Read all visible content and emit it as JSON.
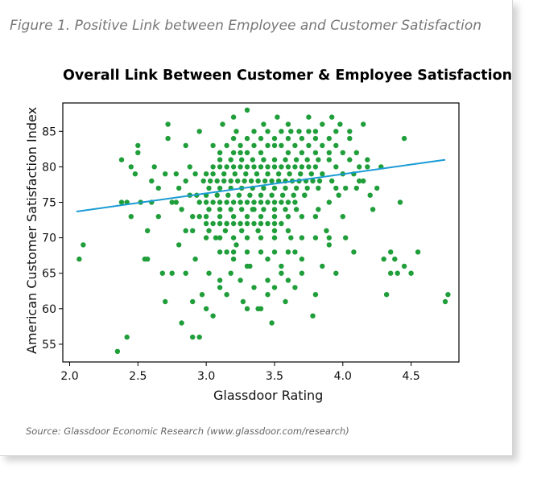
{
  "figure": {
    "caption": "Figure 1. Positive Link between Employee and Customer Satisfaction",
    "source": "Source: Glassdoor Economic Research (www.glassdoor.com/research)"
  },
  "chart_data": {
    "type": "scatter",
    "title": "Overall Link Between Customer & Employee Satisfaction",
    "xlabel": "Glassdoor Rating",
    "ylabel": "American Customer Satisfaction Index",
    "xlim": [
      1.95,
      4.85
    ],
    "ylim": [
      52.5,
      89
    ],
    "xticks": [
      "2.0",
      "2.5",
      "3.0",
      "3.5",
      "4.0",
      "4.5"
    ],
    "yticks": [
      "55",
      "60",
      "65",
      "70",
      "75",
      "80",
      "85"
    ],
    "grid": false,
    "point_color": "#1f9e3a",
    "line_color": "#1a9bd4",
    "trend_line": {
      "x": [
        2.05,
        4.75
      ],
      "y": [
        73.7,
        81.0
      ]
    },
    "series": [
      {
        "points": [
          [
            2.07,
            67
          ],
          [
            2.1,
            69
          ],
          [
            2.35,
            54
          ],
          [
            2.42,
            56
          ],
          [
            2.38,
            81
          ],
          [
            2.38,
            75
          ],
          [
            2.42,
            75
          ],
          [
            2.45,
            80
          ],
          [
            2.45,
            73
          ],
          [
            2.48,
            79
          ],
          [
            2.5,
            83
          ],
          [
            2.5,
            82
          ],
          [
            2.52,
            75
          ],
          [
            2.55,
            67
          ],
          [
            2.57,
            67
          ],
          [
            2.57,
            71
          ],
          [
            2.6,
            75
          ],
          [
            2.6,
            78
          ],
          [
            2.62,
            80
          ],
          [
            2.65,
            73
          ],
          [
            2.65,
            77
          ],
          [
            2.68,
            65
          ],
          [
            2.7,
            61
          ],
          [
            2.7,
            79
          ],
          [
            2.72,
            86
          ],
          [
            2.72,
            84
          ],
          [
            2.75,
            65
          ],
          [
            2.75,
            75
          ],
          [
            2.78,
            75
          ],
          [
            2.78,
            79
          ],
          [
            2.8,
            69
          ],
          [
            2.82,
            58
          ],
          [
            2.85,
            65
          ],
          [
            2.85,
            71
          ],
          [
            2.85,
            83
          ],
          [
            2.88,
            76
          ],
          [
            2.9,
            56
          ],
          [
            2.9,
            61
          ],
          [
            2.92,
            67
          ],
          [
            2.95,
            56
          ],
          [
            2.95,
            73
          ],
          [
            2.95,
            85
          ],
          [
            2.97,
            62
          ],
          [
            3.0,
            60
          ],
          [
            3.0,
            79
          ],
          [
            3.02,
            65
          ],
          [
            3.05,
            59
          ],
          [
            3.05,
            83
          ],
          [
            3.07,
            70
          ],
          [
            3.1,
            63
          ],
          [
            3.12,
            86
          ],
          [
            3.15,
            68
          ],
          [
            3.15,
            72
          ],
          [
            3.18,
            65
          ],
          [
            3.2,
            87
          ],
          [
            3.22,
            69
          ],
          [
            3.25,
            82
          ],
          [
            3.27,
            61
          ],
          [
            3.3,
            60
          ],
          [
            3.3,
            88
          ],
          [
            3.32,
            66
          ],
          [
            3.35,
            74
          ],
          [
            3.38,
            60
          ],
          [
            3.4,
            60
          ],
          [
            3.42,
            86
          ],
          [
            3.45,
            64
          ],
          [
            3.48,
            58
          ],
          [
            3.5,
            83
          ],
          [
            3.52,
            87
          ],
          [
            3.55,
            65
          ],
          [
            3.58,
            61
          ],
          [
            3.6,
            86
          ],
          [
            3.62,
            70
          ],
          [
            3.65,
            63
          ],
          [
            3.68,
            85
          ],
          [
            3.7,
            67
          ],
          [
            3.72,
            76
          ],
          [
            3.75,
            87
          ],
          [
            3.78,
            59
          ],
          [
            3.8,
            62
          ],
          [
            3.8,
            85
          ],
          [
            3.82,
            74
          ],
          [
            3.85,
            66
          ],
          [
            3.85,
            86
          ],
          [
            3.88,
            71
          ],
          [
            3.9,
            69
          ],
          [
            3.92,
            87
          ],
          [
            3.95,
            65
          ],
          [
            3.95,
            80
          ],
          [
            3.98,
            86
          ],
          [
            4.0,
            73
          ],
          [
            4.02,
            70
          ],
          [
            4.05,
            84
          ],
          [
            4.08,
            68
          ],
          [
            4.1,
            82
          ],
          [
            4.12,
            78
          ],
          [
            4.15,
            86
          ],
          [
            4.18,
            80
          ],
          [
            4.2,
            76
          ],
          [
            4.22,
            74
          ],
          [
            4.25,
            77
          ],
          [
            4.28,
            80
          ],
          [
            4.3,
            67
          ],
          [
            4.32,
            62
          ],
          [
            4.35,
            65
          ],
          [
            4.35,
            68
          ],
          [
            4.38,
            67
          ],
          [
            4.4,
            65
          ],
          [
            4.42,
            75
          ],
          [
            4.45,
            66
          ],
          [
            4.45,
            84
          ],
          [
            4.5,
            65
          ],
          [
            4.55,
            68
          ],
          [
            4.75,
            61
          ],
          [
            4.77,
            62
          ],
          [
            2.95,
            75
          ],
          [
            3.0,
            75
          ],
          [
            3.05,
            75
          ],
          [
            3.1,
            75
          ],
          [
            3.15,
            75
          ],
          [
            3.2,
            75
          ],
          [
            3.25,
            75
          ],
          [
            3.3,
            75
          ],
          [
            3.35,
            75
          ],
          [
            3.4,
            75
          ],
          [
            3.45,
            75
          ],
          [
            3.5,
            75
          ],
          [
            3.55,
            75
          ],
          [
            3.6,
            75
          ],
          [
            3.65,
            75
          ],
          [
            2.98,
            78
          ],
          [
            3.03,
            78
          ],
          [
            3.08,
            78
          ],
          [
            3.13,
            78
          ],
          [
            3.18,
            78
          ],
          [
            3.23,
            78
          ],
          [
            3.28,
            78
          ],
          [
            3.33,
            78
          ],
          [
            3.38,
            78
          ],
          [
            3.43,
            78
          ],
          [
            3.48,
            78
          ],
          [
            3.53,
            78
          ],
          [
            3.58,
            78
          ],
          [
            3.63,
            78
          ],
          [
            3.68,
            78
          ],
          [
            3.73,
            78
          ],
          [
            3.78,
            78
          ],
          [
            3.83,
            78
          ],
          [
            3.05,
            80
          ],
          [
            3.1,
            80
          ],
          [
            3.15,
            80
          ],
          [
            3.2,
            80
          ],
          [
            3.25,
            80
          ],
          [
            3.3,
            80
          ],
          [
            3.35,
            80
          ],
          [
            3.4,
            80
          ],
          [
            3.45,
            80
          ],
          [
            3.5,
            80
          ],
          [
            3.55,
            80
          ],
          [
            3.6,
            80
          ],
          [
            3.65,
            80
          ],
          [
            3.7,
            80
          ],
          [
            3.75,
            80
          ],
          [
            3.8,
            80
          ],
          [
            3.0,
            72
          ],
          [
            3.05,
            72
          ],
          [
            3.1,
            72
          ],
          [
            3.15,
            72
          ],
          [
            3.2,
            72
          ],
          [
            3.25,
            72
          ],
          [
            3.3,
            72
          ],
          [
            3.35,
            72
          ],
          [
            3.4,
            72
          ],
          [
            3.45,
            72
          ],
          [
            3.5,
            72
          ],
          [
            3.55,
            72
          ],
          [
            3.0,
            76
          ],
          [
            3.08,
            76
          ],
          [
            3.16,
            76
          ],
          [
            3.24,
            76
          ],
          [
            3.32,
            76
          ],
          [
            3.4,
            76
          ],
          [
            3.48,
            76
          ],
          [
            3.56,
            76
          ],
          [
            3.64,
            76
          ],
          [
            3.72,
            76
          ],
          [
            3.02,
            77
          ],
          [
            3.1,
            77
          ],
          [
            3.18,
            77
          ],
          [
            3.26,
            77
          ],
          [
            3.34,
            77
          ],
          [
            3.42,
            77
          ],
          [
            3.5,
            77
          ],
          [
            3.58,
            77
          ],
          [
            3.66,
            77
          ],
          [
            3.74,
            77
          ],
          [
            3.82,
            77
          ],
          [
            3.02,
            74
          ],
          [
            3.1,
            74
          ],
          [
            3.18,
            74
          ],
          [
            3.26,
            74
          ],
          [
            3.34,
            74
          ],
          [
            3.42,
            74
          ],
          [
            3.5,
            74
          ],
          [
            3.58,
            74
          ],
          [
            3.66,
            74
          ],
          [
            3.05,
            79
          ],
          [
            3.13,
            79
          ],
          [
            3.21,
            79
          ],
          [
            3.29,
            79
          ],
          [
            3.37,
            79
          ],
          [
            3.45,
            79
          ],
          [
            3.53,
            79
          ],
          [
            3.61,
            79
          ],
          [
            3.69,
            79
          ],
          [
            3.77,
            79
          ],
          [
            3.85,
            79
          ],
          [
            3.1,
            81
          ],
          [
            3.18,
            81
          ],
          [
            3.26,
            81
          ],
          [
            3.34,
            81
          ],
          [
            3.42,
            81
          ],
          [
            3.5,
            81
          ],
          [
            3.58,
            81
          ],
          [
            3.66,
            81
          ],
          [
            3.74,
            81
          ],
          [
            3.82,
            81
          ],
          [
            3.9,
            81
          ],
          [
            3.1,
            82
          ],
          [
            3.2,
            82
          ],
          [
            3.3,
            82
          ],
          [
            3.4,
            82
          ],
          [
            3.6,
            82
          ],
          [
            3.7,
            82
          ],
          [
            3.8,
            82
          ],
          [
            3.9,
            82
          ],
          [
            4.0,
            82
          ],
          [
            3.15,
            83
          ],
          [
            3.25,
            83
          ],
          [
            3.35,
            83
          ],
          [
            3.45,
            83
          ],
          [
            3.55,
            83
          ],
          [
            3.65,
            83
          ],
          [
            3.75,
            83
          ],
          [
            3.85,
            83
          ],
          [
            3.95,
            83
          ],
          [
            3.2,
            84
          ],
          [
            3.3,
            84
          ],
          [
            3.4,
            84
          ],
          [
            3.5,
            84
          ],
          [
            3.6,
            84
          ],
          [
            3.7,
            84
          ],
          [
            3.8,
            84
          ],
          [
            3.9,
            84
          ],
          [
            3.22,
            85
          ],
          [
            3.35,
            85
          ],
          [
            3.45,
            85
          ],
          [
            3.55,
            85
          ],
          [
            3.62,
            85
          ],
          [
            3.75,
            85
          ],
          [
            3.95,
            85
          ],
          [
            4.05,
            85
          ],
          [
            3.0,
            70
          ],
          [
            3.1,
            70
          ],
          [
            3.2,
            70
          ],
          [
            3.3,
            70
          ],
          [
            3.4,
            70
          ],
          [
            3.5,
            70
          ],
          [
            3.7,
            70
          ],
          [
            3.8,
            70
          ],
          [
            3.9,
            70
          ],
          [
            2.9,
            71
          ],
          [
            3.02,
            71
          ],
          [
            3.14,
            71
          ],
          [
            3.26,
            71
          ],
          [
            3.38,
            71
          ],
          [
            3.5,
            71
          ],
          [
            3.6,
            71
          ],
          [
            3.0,
            73
          ],
          [
            3.1,
            73
          ],
          [
            3.2,
            73
          ],
          [
            3.3,
            73
          ],
          [
            3.4,
            73
          ],
          [
            3.5,
            73
          ],
          [
            3.6,
            73
          ],
          [
            3.7,
            73
          ],
          [
            3.8,
            73
          ],
          [
            2.8,
            77
          ],
          [
            2.82,
            74
          ],
          [
            2.85,
            78
          ],
          [
            2.88,
            80
          ],
          [
            2.9,
            73
          ],
          [
            2.92,
            79
          ],
          [
            2.93,
            76
          ],
          [
            3.9,
            75
          ],
          [
            3.92,
            78
          ],
          [
            3.95,
            77
          ],
          [
            3.97,
            76
          ],
          [
            4.0,
            79
          ],
          [
            4.02,
            77
          ],
          [
            4.05,
            81
          ],
          [
            4.08,
            79
          ],
          [
            4.1,
            77
          ],
          [
            4.12,
            80
          ],
          [
            4.15,
            78
          ],
          [
            4.18,
            81
          ],
          [
            3.1,
            68
          ],
          [
            3.2,
            68
          ],
          [
            3.3,
            68
          ],
          [
            3.4,
            68
          ],
          [
            3.5,
            68
          ],
          [
            3.6,
            68
          ],
          [
            3.2,
            67
          ],
          [
            3.3,
            66
          ],
          [
            3.45,
            67
          ],
          [
            3.55,
            66
          ],
          [
            3.65,
            68
          ],
          [
            3.1,
            64
          ],
          [
            3.25,
            64
          ],
          [
            3.35,
            63
          ],
          [
            3.5,
            63
          ],
          [
            3.6,
            64
          ],
          [
            3.7,
            65
          ],
          [
            3.15,
            62
          ],
          [
            3.45,
            62
          ]
        ]
      }
    ]
  }
}
